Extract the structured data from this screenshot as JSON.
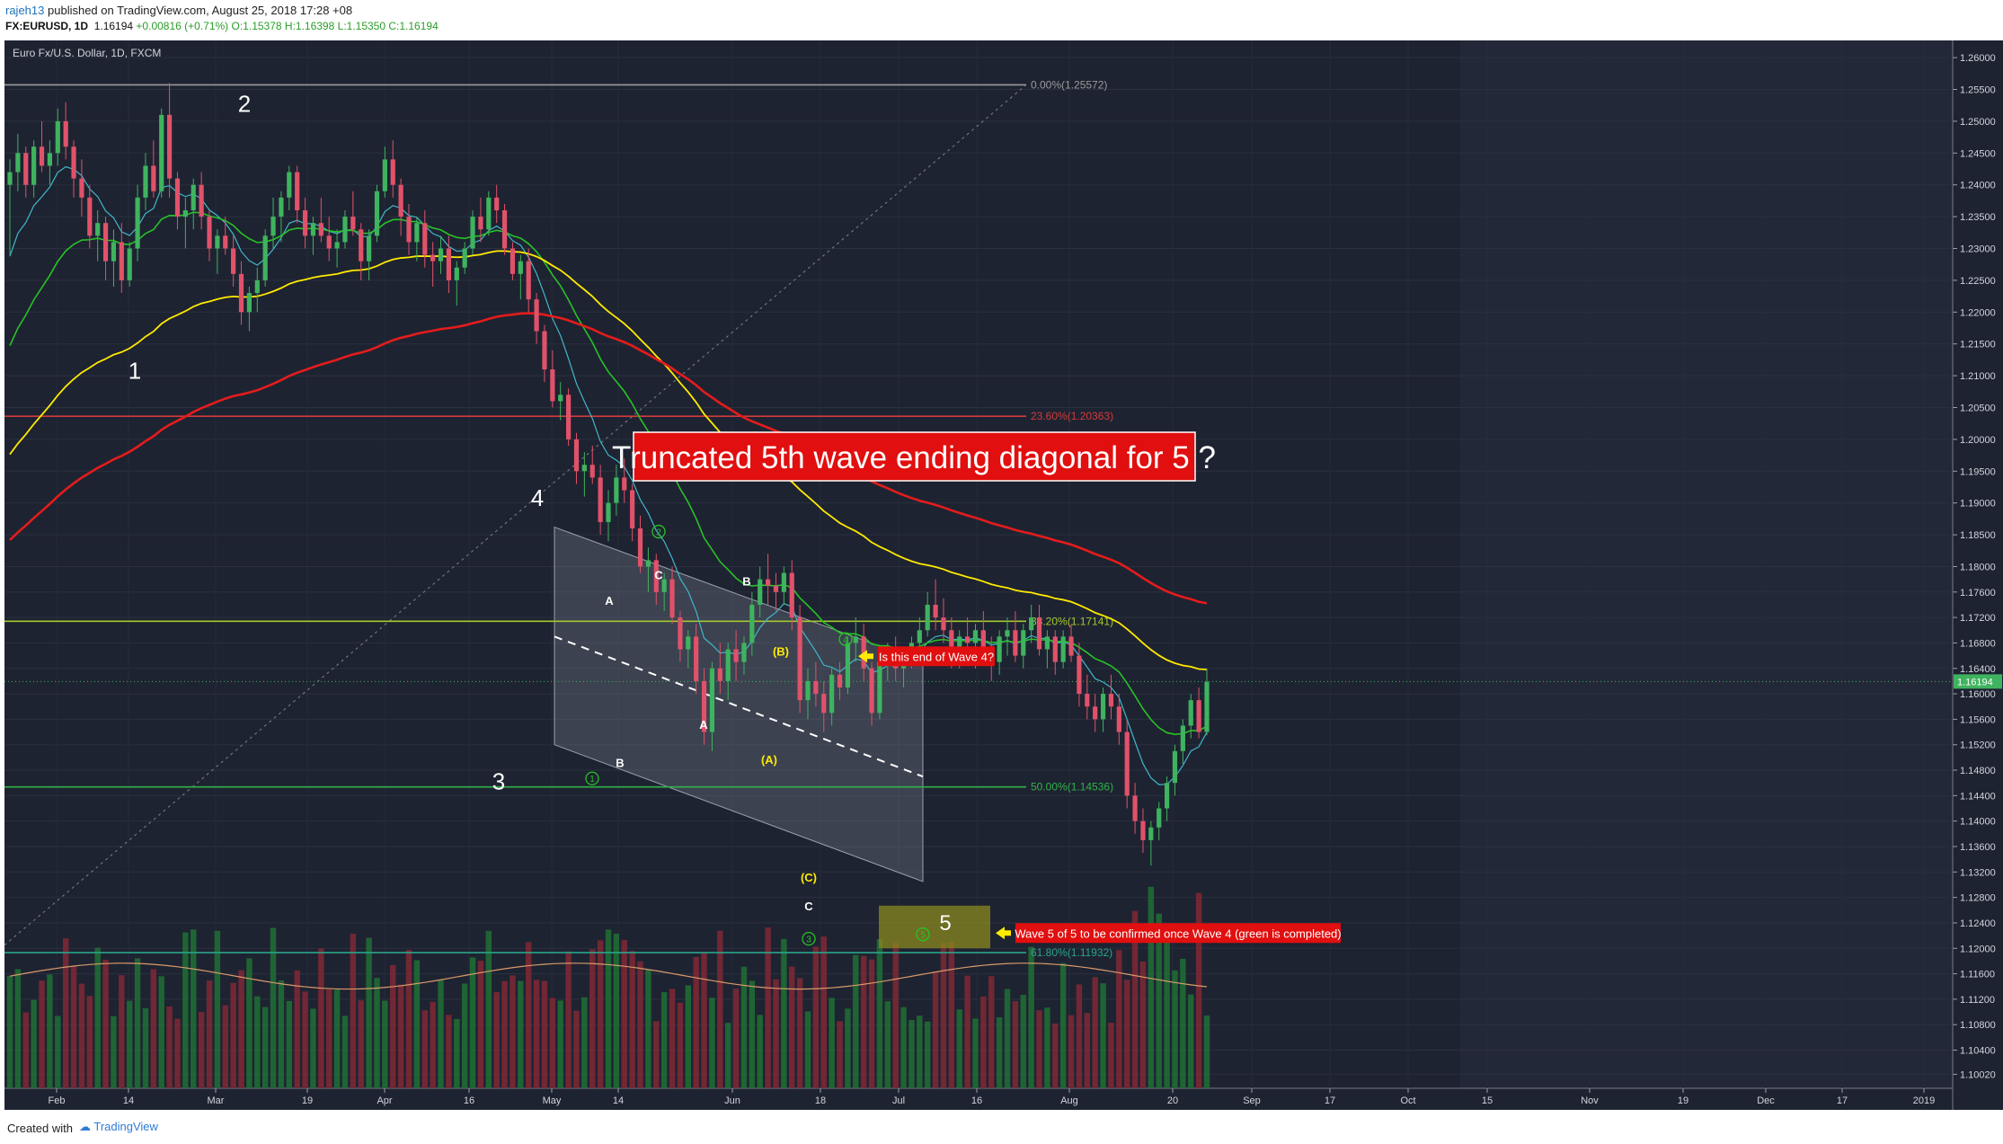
{
  "header": {
    "user": "rajeh13",
    "published": "published on TradingView.com, August 25, 2018 17:28 +08",
    "symbol": "FX:EURUSD, 1D",
    "last": "1.16194",
    "change": "+0.00816 (+0.71%)",
    "open": "O:1.15378",
    "high": "H:1.16398",
    "low": "L:1.15350",
    "close": "C:1.16194"
  },
  "footer": {
    "created_with": "Created with",
    "brand": "TradingView"
  },
  "colors": {
    "background": "#1e2331",
    "future_area": "#232838",
    "bull": "#3fb35f",
    "bear": "#e0526a",
    "ema_fast": "#41b7c9",
    "ema_mid": "#27c227",
    "ema_slow": "#ffea00",
    "ema_long": "#e41c1c"
  },
  "chart_data": {
    "type": "candlestick",
    "title": "Euro Fx/U.S. Dollar, 1D, FXCM",
    "price_axis": {
      "range": [
        1.098,
        1.2627
      ],
      "ticks": [
        "1.26000",
        "1.25500",
        "1.25000",
        "1.24500",
        "1.24000",
        "1.23500",
        "1.23000",
        "1.22500",
        "1.22000",
        "1.21500",
        "1.21000",
        "1.20500",
        "1.20000",
        "1.19500",
        "1.19000",
        "1.18500",
        "1.18000",
        "1.17600",
        "1.17200",
        "1.16800",
        "1.16400",
        "1.16000",
        "1.15600",
        "1.15200",
        "1.14800",
        "1.14400",
        "1.14000",
        "1.13600",
        "1.13200",
        "1.12800",
        "1.12400",
        "1.12000",
        "1.11600",
        "1.11200",
        "1.10800",
        "1.10400",
        "1.10020"
      ],
      "last_price_label": "1.16194",
      "last_price": 1.16194
    },
    "time_axis": {
      "labels": [
        "Feb",
        "14",
        "Mar",
        "19",
        "Apr",
        "16",
        "May",
        "14",
        "Jun",
        "18",
        "Jul",
        "16",
        "Aug",
        "20",
        "Sep",
        "17",
        "Oct",
        "15",
        "Nov",
        "19",
        "Dec",
        "17",
        "2019"
      ]
    },
    "fib_levels": [
      {
        "label": "0.00%(1.25572)",
        "price": 1.25572,
        "color": "#9a9a9a"
      },
      {
        "label": "23.60%(1.20363)",
        "price": 1.20363,
        "color": "#d13b3b"
      },
      {
        "label": "38.20%(1.17141)",
        "price": 1.17141,
        "color": "#a3c92e"
      },
      {
        "label": "50.00%(1.14536)",
        "price": 1.14536,
        "color": "#2fb347"
      },
      {
        "label": "61.80%(1.11932)",
        "price": 1.11932,
        "color": "#2aa58a"
      }
    ],
    "wave_labels": [
      {
        "text": "1",
        "price": 1.2095,
        "color": "#ffffff",
        "size": 26
      },
      {
        "text": "2",
        "price": 1.2515,
        "color": "#ffffff",
        "size": 26
      },
      {
        "text": "3",
        "price": 1.145,
        "color": "#ffffff",
        "size": 26
      },
      {
        "text": "4",
        "price": 1.1895,
        "color": "#ffffff",
        "size": 26
      },
      {
        "text": "A",
        "price": 1.174,
        "color": "#ffffff",
        "size": 13
      },
      {
        "text": "B",
        "price": 1.1485,
        "color": "#ffffff",
        "size": 13
      },
      {
        "text": "C",
        "price": 1.178,
        "color": "#ffffff",
        "size": 13
      },
      {
        "text": "A",
        "price": 1.1545,
        "color": "#ffffff",
        "size": 13
      },
      {
        "text": "B",
        "price": 1.177,
        "color": "#ffffff",
        "size": 13
      },
      {
        "text": "(A)",
        "price": 1.149,
        "color": "#ffea00",
        "size": 13
      },
      {
        "text": "(B)",
        "price": 1.166,
        "color": "#ffea00",
        "size": 13
      },
      {
        "text": "(C)",
        "price": 1.1305,
        "color": "#ffea00",
        "size": 13
      },
      {
        "text": "C",
        "price": 1.126,
        "color": "#ffffff",
        "size": 13
      }
    ],
    "circled_labels": [
      {
        "text": "1",
        "price": 1.1467
      },
      {
        "text": "2",
        "price": 1.1855
      },
      {
        "text": "3",
        "price": 1.1215
      },
      {
        "text": "4",
        "price": 1.1686
      },
      {
        "text": "5",
        "price": 1.1222
      }
    ],
    "annotations": [
      {
        "text": "Truncated 5th wave ending diagonal for 5 ?",
        "price": 1.1973
      },
      {
        "text": "Is this end of Wave 4?",
        "price": 1.1659
      },
      {
        "text": "Wave 5 of 5 to be confirmed once Wave 4 (green is completed)",
        "price": 1.1224
      }
    ],
    "wave5_box": {
      "label": "5",
      "price_top": 1.1267,
      "price_bottom": 1.12
    },
    "channel": {
      "upper": [
        1.1862,
        1.165
      ],
      "lower": [
        1.152,
        1.1305
      ]
    },
    "dashed_midline": [
      1.169,
      1.147
    ],
    "candles": [
      [
        1.24,
        1.244,
        1.229,
        1.242
      ],
      [
        1.242,
        1.248,
        1.239,
        1.245
      ],
      [
        1.245,
        1.246,
        1.238,
        1.24
      ],
      [
        1.24,
        1.247,
        1.238,
        1.246
      ],
      [
        1.246,
        1.25,
        1.242,
        1.243
      ],
      [
        1.243,
        1.247,
        1.24,
        1.245
      ],
      [
        1.245,
        1.252,
        1.243,
        1.25
      ],
      [
        1.25,
        1.253,
        1.244,
        1.246
      ],
      [
        1.246,
        1.247,
        1.238,
        1.241
      ],
      [
        1.241,
        1.244,
        1.235,
        1.238
      ],
      [
        1.238,
        1.24,
        1.23,
        1.232
      ],
      [
        1.232,
        1.236,
        1.228,
        1.234
      ],
      [
        1.234,
        1.235,
        1.225,
        1.228
      ],
      [
        1.228,
        1.233,
        1.224,
        1.231
      ],
      [
        1.231,
        1.234,
        1.223,
        1.225
      ],
      [
        1.225,
        1.231,
        1.224,
        1.23
      ],
      [
        1.23,
        1.24,
        1.228,
        1.238
      ],
      [
        1.238,
        1.245,
        1.236,
        1.243
      ],
      [
        1.243,
        1.247,
        1.238,
        1.239
      ],
      [
        1.239,
        1.252,
        1.238,
        1.251
      ],
      [
        1.251,
        1.256,
        1.238,
        1.241
      ],
      [
        1.241,
        1.242,
        1.233,
        1.235
      ],
      [
        1.235,
        1.238,
        1.23,
        1.236
      ],
      [
        1.236,
        1.241,
        1.233,
        1.24
      ],
      [
        1.24,
        1.242,
        1.233,
        1.235
      ],
      [
        1.235,
        1.236,
        1.228,
        1.23
      ],
      [
        1.23,
        1.233,
        1.226,
        1.232
      ],
      [
        1.232,
        1.235,
        1.229,
        1.23
      ],
      [
        1.23,
        1.232,
        1.224,
        1.226
      ],
      [
        1.226,
        1.228,
        1.218,
        1.22
      ],
      [
        1.22,
        1.224,
        1.217,
        1.223
      ],
      [
        1.223,
        1.227,
        1.22,
        1.225
      ],
      [
        1.225,
        1.233,
        1.224,
        1.232
      ],
      [
        1.232,
        1.238,
        1.23,
        1.235
      ],
      [
        1.235,
        1.239,
        1.231,
        1.238
      ],
      [
        1.238,
        1.243,
        1.236,
        1.242
      ],
      [
        1.242,
        1.243,
        1.234,
        1.236
      ],
      [
        1.236,
        1.238,
        1.23,
        1.232
      ],
      [
        1.232,
        1.235,
        1.229,
        1.234
      ],
      [
        1.234,
        1.238,
        1.231,
        1.232
      ],
      [
        1.232,
        1.235,
        1.228,
        1.23
      ],
      [
        1.23,
        1.233,
        1.227,
        1.231
      ],
      [
        1.231,
        1.236,
        1.23,
        1.235
      ],
      [
        1.235,
        1.239,
        1.232,
        1.233
      ],
      [
        1.233,
        1.234,
        1.225,
        1.228
      ],
      [
        1.228,
        1.233,
        1.225,
        1.232
      ],
      [
        1.232,
        1.24,
        1.231,
        1.239
      ],
      [
        1.239,
        1.246,
        1.238,
        1.244
      ],
      [
        1.244,
        1.247,
        1.238,
        1.24
      ],
      [
        1.24,
        1.241,
        1.232,
        1.235
      ],
      [
        1.235,
        1.237,
        1.229,
        1.231
      ],
      [
        1.231,
        1.235,
        1.228,
        1.234
      ],
      [
        1.234,
        1.236,
        1.227,
        1.229
      ],
      [
        1.229,
        1.231,
        1.224,
        1.228
      ],
      [
        1.228,
        1.232,
        1.226,
        1.23
      ],
      [
        1.23,
        1.232,
        1.223,
        1.225
      ],
      [
        1.225,
        1.228,
        1.221,
        1.227
      ],
      [
        1.227,
        1.231,
        1.226,
        1.23
      ],
      [
        1.23,
        1.236,
        1.229,
        1.235
      ],
      [
        1.235,
        1.238,
        1.231,
        1.233
      ],
      [
        1.233,
        1.239,
        1.232,
        1.238
      ],
      [
        1.238,
        1.24,
        1.234,
        1.236
      ],
      [
        1.236,
        1.237,
        1.229,
        1.23
      ],
      [
        1.23,
        1.231,
        1.225,
        1.226
      ],
      [
        1.226,
        1.229,
        1.222,
        1.228
      ],
      [
        1.228,
        1.23,
        1.22,
        1.222
      ],
      [
        1.222,
        1.223,
        1.215,
        1.217
      ],
      [
        1.217,
        1.218,
        1.209,
        1.211
      ],
      [
        1.211,
        1.214,
        1.205,
        1.206
      ],
      [
        1.206,
        1.209,
        1.203,
        1.207
      ],
      [
        1.207,
        1.208,
        1.199,
        1.2
      ],
      [
        1.2,
        1.201,
        1.193,
        1.195
      ],
      [
        1.195,
        1.198,
        1.191,
        1.196
      ],
      [
        1.196,
        1.199,
        1.193,
        1.194
      ],
      [
        1.194,
        1.196,
        1.185,
        1.187
      ],
      [
        1.187,
        1.192,
        1.184,
        1.19
      ],
      [
        1.19,
        1.196,
        1.188,
        1.194
      ],
      [
        1.194,
        1.197,
        1.19,
        1.192
      ],
      [
        1.192,
        1.193,
        1.184,
        1.186
      ],
      [
        1.186,
        1.188,
        1.179,
        1.18
      ],
      [
        1.18,
        1.183,
        1.176,
        1.181
      ],
      [
        1.181,
        1.182,
        1.174,
        1.176
      ],
      [
        1.176,
        1.179,
        1.173,
        1.178
      ],
      [
        1.178,
        1.18,
        1.171,
        1.172
      ],
      [
        1.172,
        1.173,
        1.165,
        1.167
      ],
      [
        1.167,
        1.17,
        1.164,
        1.169
      ],
      [
        1.169,
        1.171,
        1.16,
        1.162
      ],
      [
        1.162,
        1.164,
        1.152,
        1.154
      ],
      [
        1.154,
        1.165,
        1.151,
        1.164
      ],
      [
        1.164,
        1.168,
        1.16,
        1.162
      ],
      [
        1.162,
        1.168,
        1.159,
        1.167
      ],
      [
        1.167,
        1.17,
        1.162,
        1.165
      ],
      [
        1.165,
        1.169,
        1.163,
        1.168
      ],
      [
        1.168,
        1.176,
        1.166,
        1.174
      ],
      [
        1.174,
        1.18,
        1.172,
        1.178
      ],
      [
        1.178,
        1.182,
        1.174,
        1.177
      ],
      [
        1.177,
        1.179,
        1.173,
        1.176
      ],
      [
        1.176,
        1.18,
        1.174,
        1.179
      ],
      [
        1.179,
        1.181,
        1.17,
        1.172
      ],
      [
        1.172,
        1.174,
        1.157,
        1.159
      ],
      [
        1.159,
        1.164,
        1.156,
        1.162
      ],
      [
        1.162,
        1.165,
        1.158,
        1.16
      ],
      [
        1.16,
        1.162,
        1.154,
        1.157
      ],
      [
        1.157,
        1.164,
        1.155,
        1.163
      ],
      [
        1.163,
        1.165,
        1.159,
        1.161
      ],
      [
        1.161,
        1.169,
        1.16,
        1.168
      ],
      [
        1.168,
        1.172,
        1.165,
        1.169
      ],
      [
        1.169,
        1.171,
        1.162,
        1.164
      ],
      [
        1.164,
        1.165,
        1.155,
        1.157
      ],
      [
        1.157,
        1.166,
        1.156,
        1.165
      ],
      [
        1.165,
        1.168,
        1.162,
        1.167
      ],
      [
        1.167,
        1.169,
        1.162,
        1.164
      ],
      [
        1.164,
        1.167,
        1.161,
        1.166
      ],
      [
        1.166,
        1.169,
        1.164,
        1.168
      ],
      [
        1.168,
        1.172,
        1.166,
        1.17
      ],
      [
        1.17,
        1.176,
        1.169,
        1.174
      ],
      [
        1.174,
        1.178,
        1.17,
        1.172
      ],
      [
        1.172,
        1.175,
        1.168,
        1.17
      ],
      [
        1.17,
        1.172,
        1.164,
        1.166
      ],
      [
        1.166,
        1.17,
        1.164,
        1.169
      ],
      [
        1.169,
        1.172,
        1.166,
        1.168
      ],
      [
        1.168,
        1.171,
        1.164,
        1.17
      ],
      [
        1.17,
        1.173,
        1.166,
        1.167
      ],
      [
        1.167,
        1.169,
        1.162,
        1.165
      ],
      [
        1.165,
        1.17,
        1.163,
        1.169
      ],
      [
        1.169,
        1.172,
        1.166,
        1.17
      ],
      [
        1.17,
        1.173,
        1.165,
        1.166
      ],
      [
        1.166,
        1.171,
        1.164,
        1.17
      ],
      [
        1.17,
        1.174,
        1.168,
        1.172
      ],
      [
        1.172,
        1.174,
        1.166,
        1.167
      ],
      [
        1.167,
        1.17,
        1.164,
        1.169
      ],
      [
        1.169,
        1.17,
        1.163,
        1.165
      ],
      [
        1.165,
        1.17,
        1.164,
        1.169
      ],
      [
        1.169,
        1.171,
        1.165,
        1.166
      ],
      [
        1.166,
        1.168,
        1.158,
        1.16
      ],
      [
        1.16,
        1.163,
        1.156,
        1.158
      ],
      [
        1.158,
        1.16,
        1.154,
        1.156
      ],
      [
        1.156,
        1.161,
        1.154,
        1.16
      ],
      [
        1.16,
        1.163,
        1.156,
        1.158
      ],
      [
        1.158,
        1.16,
        1.152,
        1.154
      ],
      [
        1.154,
        1.156,
        1.142,
        1.144
      ],
      [
        1.144,
        1.146,
        1.138,
        1.14
      ],
      [
        1.14,
        1.142,
        1.135,
        1.137
      ],
      [
        1.137,
        1.14,
        1.133,
        1.139
      ],
      [
        1.139,
        1.143,
        1.137,
        1.142
      ],
      [
        1.142,
        1.147,
        1.14,
        1.146
      ],
      [
        1.146,
        1.152,
        1.144,
        1.151
      ],
      [
        1.151,
        1.156,
        1.149,
        1.155
      ],
      [
        1.155,
        1.16,
        1.153,
        1.159
      ],
      [
        1.159,
        1.161,
        1.153,
        1.154
      ],
      [
        1.154,
        1.164,
        1.1535,
        1.1619
      ]
    ]
  }
}
